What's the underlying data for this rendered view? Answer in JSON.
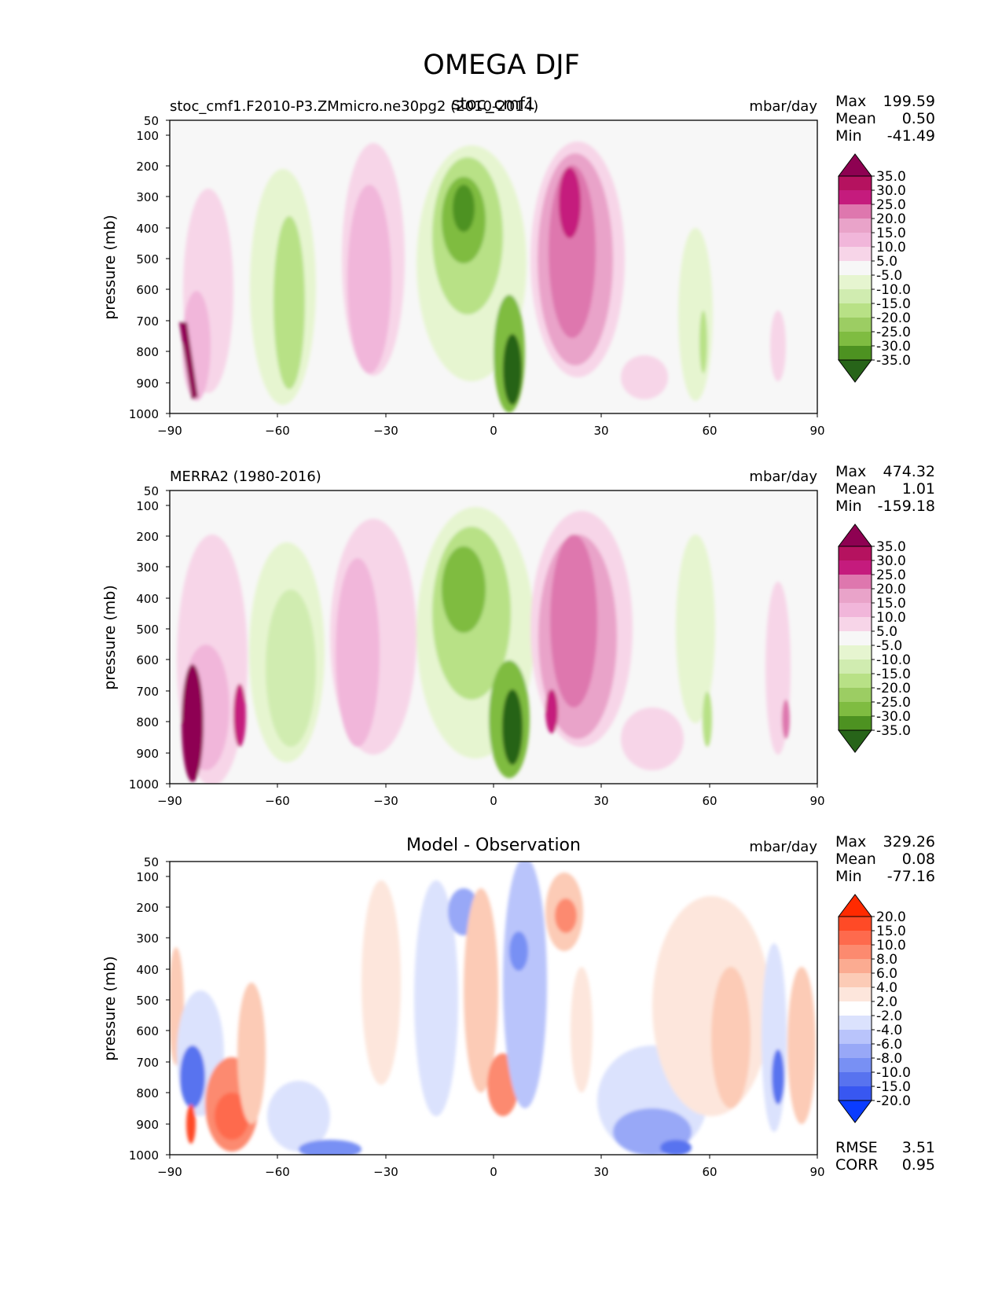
{
  "figure_title": "OMEGA DJF",
  "chart_data": [
    {
      "type": "contour",
      "case_label": "stoc_cmf1.F2010-P3.ZMmicro.ne30pg2 (2010-2014)",
      "center_title": "stoc_cmf1",
      "units": "mbar/day",
      "xlabel": "",
      "ylabel": "pressure (mb)",
      "xlim": [
        -90,
        90
      ],
      "ylim": [
        1000,
        50
      ],
      "xticks": [
        "−90",
        "−60",
        "−30",
        "0",
        "30",
        "60",
        "90"
      ],
      "yticks": [
        "50",
        "100",
        "200",
        "300",
        "400",
        "500",
        "600",
        "700",
        "800",
        "900",
        "1000"
      ],
      "stats": {
        "max": "199.59",
        "mean": "0.50",
        "min": "-41.49"
      },
      "stat_labels": {
        "max": "Max",
        "mean": "Mean",
        "min": "Min"
      },
      "colorbar": {
        "labels": [
          "35.0",
          "30.0",
          "25.0",
          "20.0",
          "15.0",
          "10.0",
          "5.0",
          "-5.0",
          "-10.0",
          "-15.0",
          "-20.0",
          "-25.0",
          "-30.0",
          "-35.0"
        ],
        "colors": [
          "#8e0152",
          "#b5125f",
          "#c51b7d",
          "#de77ae",
          "#e9a3c9",
          "#f1b6da",
          "#f7d5e8",
          "#f7f7f7",
          "#e6f5d0",
          "#d0ecb0",
          "#b8e186",
          "#9ccd63",
          "#7fbc41",
          "#4d9221",
          "#276419"
        ]
      }
    },
    {
      "type": "contour",
      "case_label": "MERRA2 (1980-2016)",
      "center_title": "",
      "units": "mbar/day",
      "xlabel": "",
      "ylabel": "pressure (mb)",
      "xlim": [
        -90,
        90
      ],
      "ylim": [
        1000,
        50
      ],
      "xticks": [
        "−90",
        "−60",
        "−30",
        "0",
        "30",
        "60",
        "90"
      ],
      "yticks": [
        "50",
        "100",
        "200",
        "300",
        "400",
        "500",
        "600",
        "700",
        "800",
        "900",
        "1000"
      ],
      "stats": {
        "max": "474.32",
        "mean": "1.01",
        "min": "-159.18"
      },
      "stat_labels": {
        "max": "Max",
        "mean": "Mean",
        "min": "Min"
      },
      "colorbar": {
        "labels": [
          "35.0",
          "30.0",
          "25.0",
          "20.0",
          "15.0",
          "10.0",
          "5.0",
          "-5.0",
          "-10.0",
          "-15.0",
          "-20.0",
          "-25.0",
          "-30.0",
          "-35.0"
        ],
        "colors": [
          "#8e0152",
          "#b5125f",
          "#c51b7d",
          "#de77ae",
          "#e9a3c9",
          "#f1b6da",
          "#f7d5e8",
          "#f7f7f7",
          "#e6f5d0",
          "#d0ecb0",
          "#b8e186",
          "#9ccd63",
          "#7fbc41",
          "#4d9221",
          "#276419"
        ]
      }
    },
    {
      "type": "contour",
      "case_label": "",
      "center_title": "Model - Observation",
      "units": "mbar/day",
      "xlabel": "",
      "ylabel": "pressure (mb)",
      "xlim": [
        -90,
        90
      ],
      "ylim": [
        1000,
        50
      ],
      "xticks": [
        "−90",
        "−60",
        "−30",
        "0",
        "30",
        "60",
        "90"
      ],
      "yticks": [
        "50",
        "100",
        "200",
        "300",
        "400",
        "500",
        "600",
        "700",
        "800",
        "900",
        "1000"
      ],
      "stats": {
        "max": "329.26",
        "mean": "0.08",
        "min": "-77.16"
      },
      "stat_labels": {
        "max": "Max",
        "mean": "Mean",
        "min": "Min"
      },
      "extra_stats": {
        "rmse_label": "RMSE",
        "rmse": "3.51",
        "corr_label": "CORR",
        "corr": "0.95"
      },
      "colorbar": {
        "labels": [
          "20.0",
          "15.0",
          "10.0",
          "8.0",
          "6.0",
          "4.0",
          "2.0",
          "-2.0",
          "-4.0",
          "-6.0",
          "-8.0",
          "-10.0",
          "-15.0",
          "-20.0"
        ],
        "colors": [
          "#ff2a00",
          "#ff4a26",
          "#fe6a4d",
          "#fc8a6f",
          "#fbab91",
          "#fccbb6",
          "#fde6dc",
          "#ffffff",
          "#dbe2fd",
          "#b9c4fb",
          "#98a8f7",
          "#7890f4",
          "#5873ef",
          "#3857f1",
          "#0a3cff"
        ]
      },
      "difference_panel": true
    }
  ]
}
